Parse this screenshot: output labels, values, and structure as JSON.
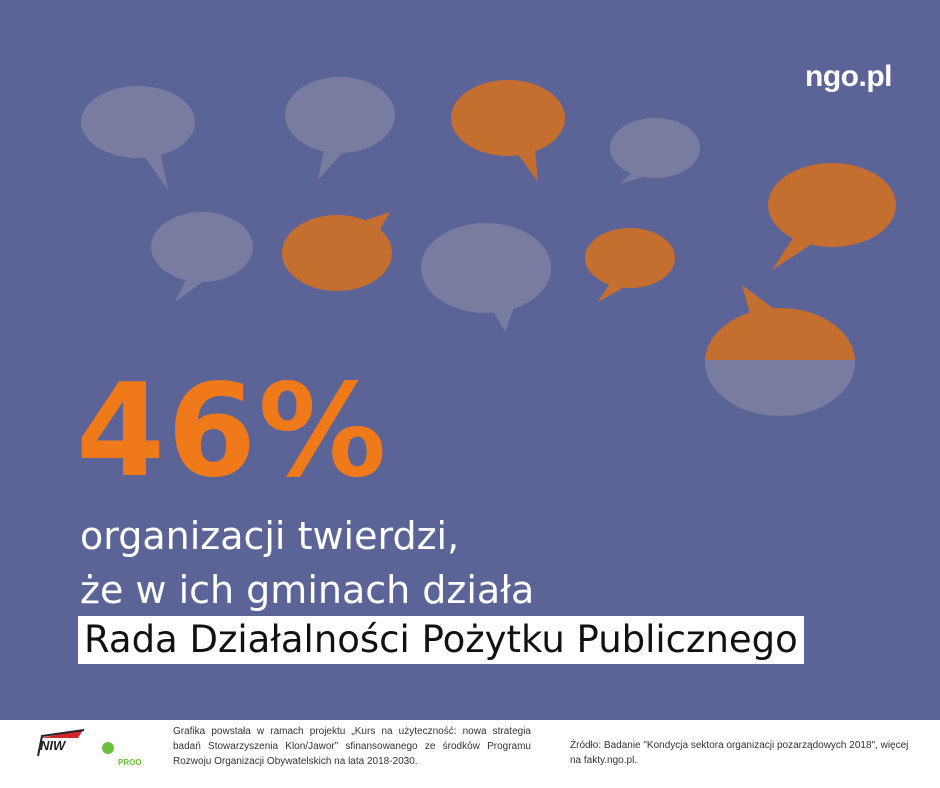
{
  "logo": "ngo.pl",
  "stat": "46%",
  "text": {
    "line1": "organizacji twierdzi,",
    "line2": "że w ich gminach działa",
    "highlight": "Rada Działalności Pożytku Publicznego"
  },
  "footer": {
    "logo_left": "NIW",
    "logo_right": "PROO",
    "credit": "Grafika powstała w ramach projektu „Kurs na użyteczność: nowa strategia badań Stowarzyszenia Klon/Jawor” sfinansowanego ze środków Programu Rozwoju Organizacji Obywatelskich na lata 2018-2030.",
    "source": "Źródło: Badanie \"Kondycja sektora organizacji pozarządowych 2018\", więcej na fakty.ngo.pl."
  }
}
